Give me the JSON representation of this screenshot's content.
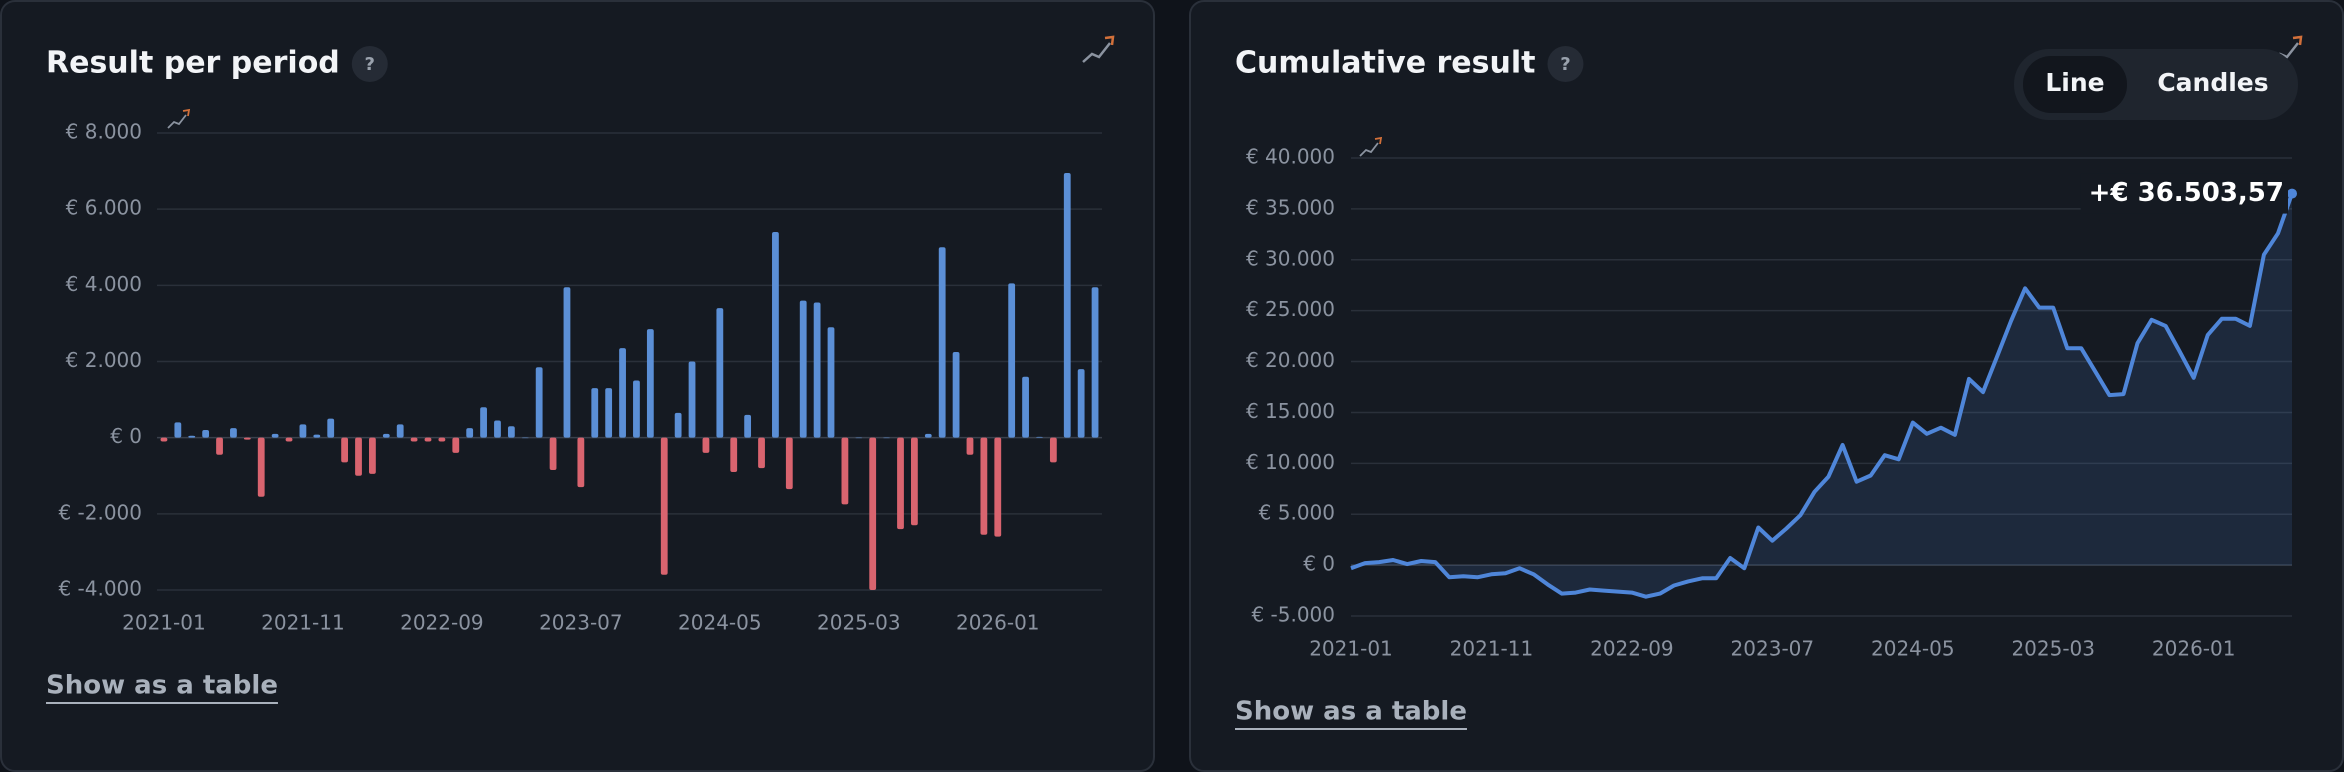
{
  "chart_data": [
    {
      "type": "bar",
      "title": "Result per period",
      "help": "?",
      "link": "Show as a table",
      "categories": [
        "2021-01",
        null,
        null,
        null,
        null,
        null,
        null,
        null,
        null,
        null,
        "2021-11",
        null,
        null,
        null,
        null,
        null,
        null,
        null,
        null,
        null,
        "2022-09",
        null,
        null,
        null,
        null,
        null,
        null,
        null,
        null,
        null,
        "2023-07",
        null,
        null,
        null,
        null,
        null,
        null,
        null,
        null,
        null,
        "2024-05",
        null,
        null,
        null,
        null,
        null,
        null,
        null,
        null,
        null,
        "2025-03",
        null,
        null,
        null,
        null,
        null,
        null,
        null,
        null,
        null,
        "2026-01",
        null,
        null,
        null,
        null,
        null,
        null,
        null
      ],
      "values": [
        -100,
        400,
        50,
        200,
        -450,
        250,
        -50,
        -1550,
        100,
        -100,
        350,
        80,
        500,
        -650,
        -1000,
        -950,
        100,
        350,
        -100,
        -100,
        -100,
        -400,
        250,
        800,
        450,
        300,
        0,
        1850,
        -850,
        3950,
        -1300,
        1300,
        1300,
        2350,
        1500,
        2850,
        -3600,
        650,
        2000,
        -400,
        3400,
        -900,
        600,
        -800,
        5400,
        -1350,
        3600,
        3550,
        2900,
        -1750,
        0,
        -4000,
        0,
        -2400,
        -2300,
        100,
        5000,
        2250,
        -450,
        -2550,
        -2600,
        4050,
        1600,
        20,
        -650,
        6950,
        1800,
        3950
      ],
      "colors": {
        "positive": "#5b8fd6",
        "negative": "#d9646f"
      },
      "ylim": [
        -4000,
        8000
      ],
      "yticks": [
        {
          "value": -4000,
          "label": "€ -4.000"
        },
        {
          "value": -2000,
          "label": "€ -2.000"
        },
        {
          "value": 0,
          "label": "€ 0"
        },
        {
          "value": 2000,
          "label": "€ 2.000"
        },
        {
          "value": 4000,
          "label": "€ 4.000"
        },
        {
          "value": 6000,
          "label": "€ 6.000"
        },
        {
          "value": 8000,
          "label": "€ 8.000"
        }
      ],
      "grid": true
    },
    {
      "type": "line",
      "title": "Cumulative result",
      "help": "?",
      "link": "Show as a table",
      "toggle": [
        "Line",
        "Candles"
      ],
      "active": "Line",
      "annotation": "+€ 36.503,57",
      "categories": [
        "2021-01",
        null,
        null,
        null,
        null,
        null,
        null,
        null,
        null,
        null,
        "2021-11",
        null,
        null,
        null,
        null,
        null,
        null,
        null,
        null,
        null,
        "2022-09",
        null,
        null,
        null,
        null,
        null,
        null,
        null,
        null,
        null,
        "2023-07",
        null,
        null,
        null,
        null,
        null,
        null,
        null,
        null,
        null,
        "2024-05",
        null,
        null,
        null,
        null,
        null,
        null,
        null,
        null,
        null,
        "2025-03",
        null,
        null,
        null,
        null,
        null,
        null,
        null,
        null,
        null,
        "2026-01",
        null,
        null,
        null,
        null,
        null,
        null,
        null
      ],
      "values": [
        -300,
        200,
        300,
        500,
        100,
        400,
        300,
        -1200,
        -1100,
        -1200,
        -900,
        -800,
        -300,
        -900,
        -1900,
        -2800,
        -2700,
        -2400,
        -2500,
        -2600,
        -2700,
        -3100,
        -2800,
        -2000,
        -1600,
        -1300,
        -1300,
        700,
        -300,
        3700,
        2400,
        3600,
        4900,
        7200,
        8700,
        11800,
        8200,
        8800,
        10800,
        10400,
        14000,
        12900,
        13500,
        12800,
        18300,
        17000,
        20500,
        24000,
        27200,
        25300,
        25300,
        21300,
        21300,
        19000,
        16700,
        16800,
        21800,
        24100,
        23500,
        21000,
        18400,
        22600,
        24200,
        24200,
        23500,
        30500,
        32600,
        36503.57
      ],
      "color": "#4f86d9",
      "ylim": [
        -5000,
        40000
      ],
      "yticks": [
        {
          "value": -5000,
          "label": "€ -5.000"
        },
        {
          "value": 0,
          "label": "€ 0"
        },
        {
          "value": 5000,
          "label": "€ 5.000"
        },
        {
          "value": 10000,
          "label": "€ 10.000"
        },
        {
          "value": 15000,
          "label": "€ 15.000"
        },
        {
          "value": 20000,
          "label": "€ 20.000"
        },
        {
          "value": 25000,
          "label": "€ 25.000"
        },
        {
          "value": 30000,
          "label": "€ 30.000"
        },
        {
          "value": 35000,
          "label": "€ 35.000"
        },
        {
          "value": 40000,
          "label": "€ 40.000"
        }
      ],
      "grid": true
    }
  ]
}
